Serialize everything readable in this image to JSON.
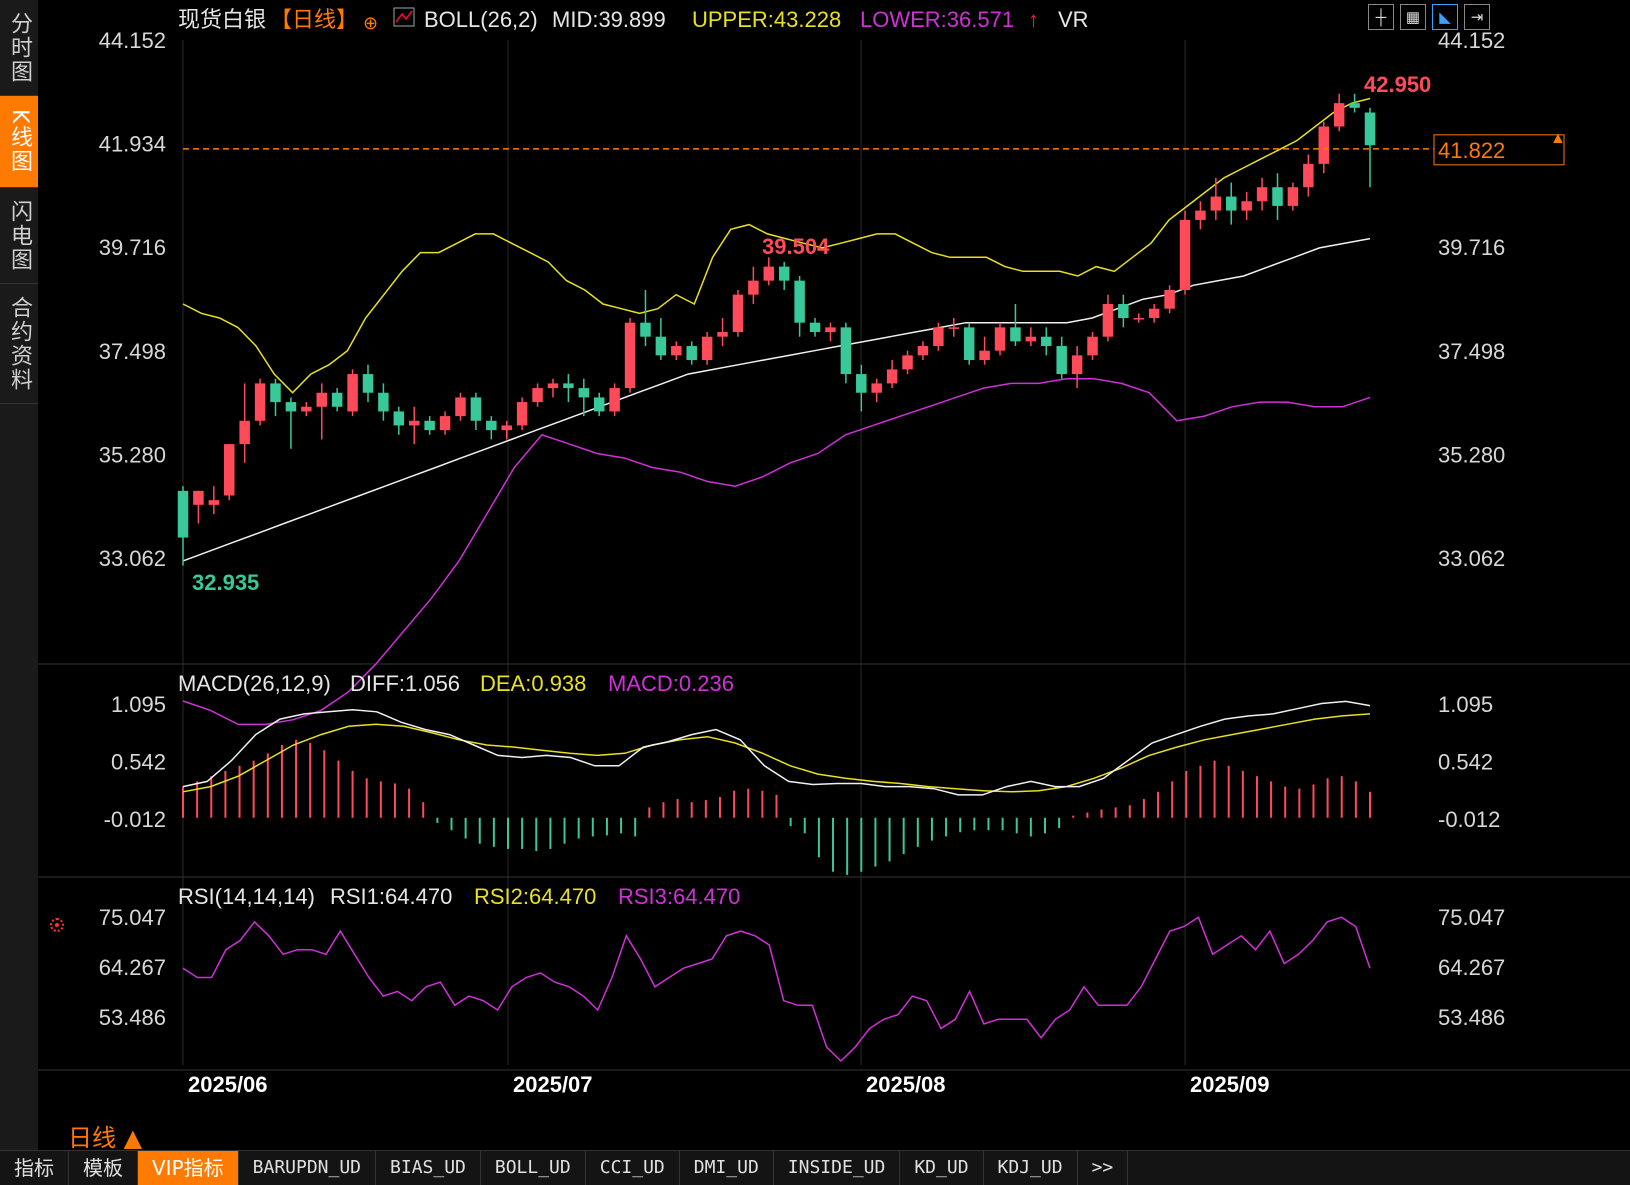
{
  "sidebar": {
    "items": [
      {
        "label": "分时图",
        "active": false
      },
      {
        "label": "K线图",
        "active": true
      },
      {
        "label": "闪电图",
        "active": false
      },
      {
        "label": "合约资料",
        "active": false
      }
    ]
  },
  "header": {
    "instrument": "现货白银",
    "period_tag": "【日线】",
    "boll": {
      "name": "BOLL(26,2)",
      "mid": "MID:39.899",
      "upper": "UPPER:43.228",
      "lower": "LOWER:36.571"
    },
    "vr": "VR"
  },
  "macd_header": {
    "name": "MACD(26,12,9)",
    "diff": "DIFF:1.056",
    "dea": "DEA:0.938",
    "macd": "MACD:0.236"
  },
  "rsi_header": {
    "name": "RSI(14,14,14)",
    "rsi1": "RSI1:64.470",
    "rsi2": "RSI2:64.470",
    "rsi3": "RSI3:64.470"
  },
  "period_label": "日线",
  "toolbar": {
    "icons": [
      "crosshair-icon",
      "chart-type-icon",
      "draw-tool-icon",
      "exit-fullscreen-icon"
    ]
  },
  "bottom_tabs": [
    "指标",
    "模板",
    "VIP指标",
    "BARUPDN_UD",
    "BIAS_UD",
    "BOLL_UD",
    "CCI_UD",
    "DMI_UD",
    "INSIDE_UD",
    "KD_UD",
    "KDJ_UD",
    ">>"
  ],
  "colors": {
    "up": "#ff4a5a",
    "down": "#38c89a",
    "upper": "#e8e020",
    "mid": "#f0f0f0",
    "lower": "#d030d8",
    "accent": "#ff7a00"
  },
  "chart_data": [
    {
      "type": "candlestick",
      "x_labels": [
        "2025/06",
        "2025/07",
        "2025/08",
        "2025/09"
      ],
      "y_ticks": [
        "44.152",
        "41.934",
        "39.716",
        "37.498",
        "35.280",
        "33.062"
      ],
      "ylim": [
        33.062,
        44.152
      ],
      "last_price": 41.822,
      "annotations": {
        "high": "42.950",
        "mid_high": "39.504",
        "low": "32.935"
      },
      "candles": [
        [
          34.5,
          33.5,
          34.6,
          32.9
        ],
        [
          34.2,
          34.5,
          34.5,
          33.8
        ],
        [
          34.2,
          34.3,
          34.6,
          34.0
        ],
        [
          34.4,
          35.5,
          35.5,
          34.3
        ],
        [
          35.5,
          36.0,
          36.8,
          35.1
        ],
        [
          36.0,
          36.8,
          36.9,
          35.9
        ],
        [
          36.8,
          36.4,
          36.9,
          36.1
        ],
        [
          36.4,
          36.2,
          36.5,
          35.4
        ],
        [
          36.2,
          36.3,
          36.4,
          36.1
        ],
        [
          36.3,
          36.6,
          36.8,
          35.6
        ],
        [
          36.6,
          36.3,
          36.7,
          36.2
        ],
        [
          36.2,
          37.0,
          37.1,
          36.1
        ],
        [
          37.0,
          36.6,
          37.2,
          36.4
        ],
        [
          36.6,
          36.2,
          36.8,
          36.0
        ],
        [
          36.2,
          35.9,
          36.3,
          35.7
        ],
        [
          35.9,
          36.0,
          36.3,
          35.5
        ],
        [
          36.0,
          35.8,
          36.1,
          35.7
        ],
        [
          35.8,
          36.1,
          36.2,
          35.7
        ],
        [
          36.1,
          36.5,
          36.6,
          36.0
        ],
        [
          36.5,
          36.0,
          36.6,
          35.8
        ],
        [
          36.0,
          35.8,
          36.1,
          35.6
        ],
        [
          35.8,
          35.9,
          36.0,
          35.6
        ],
        [
          35.9,
          36.4,
          36.5,
          35.8
        ],
        [
          36.4,
          36.7,
          36.8,
          36.3
        ],
        [
          36.7,
          36.8,
          36.9,
          36.5
        ],
        [
          36.8,
          36.7,
          37.0,
          36.4
        ],
        [
          36.7,
          36.5,
          36.9,
          36.1
        ],
        [
          36.5,
          36.2,
          36.6,
          36.1
        ],
        [
          36.2,
          36.7,
          36.8,
          36.1
        ],
        [
          36.7,
          38.1,
          38.2,
          36.6
        ],
        [
          38.1,
          37.8,
          38.8,
          37.6
        ],
        [
          37.8,
          37.4,
          38.2,
          37.3
        ],
        [
          37.4,
          37.6,
          37.7,
          37.3
        ],
        [
          37.6,
          37.3,
          37.7,
          37.2
        ],
        [
          37.3,
          37.8,
          37.9,
          37.2
        ],
        [
          37.8,
          37.9,
          38.2,
          37.6
        ],
        [
          37.9,
          38.7,
          38.8,
          37.8
        ],
        [
          38.7,
          39.0,
          39.3,
          38.5
        ],
        [
          39.0,
          39.3,
          39.5,
          38.9
        ],
        [
          39.3,
          39.0,
          39.4,
          38.8
        ],
        [
          39.0,
          38.1,
          39.1,
          37.8
        ],
        [
          38.1,
          37.9,
          38.2,
          37.8
        ],
        [
          37.9,
          38.0,
          38.1,
          37.7
        ],
        [
          38.0,
          37.0,
          38.1,
          36.8
        ],
        [
          37.0,
          36.6,
          37.2,
          36.2
        ],
        [
          36.6,
          36.8,
          36.9,
          36.4
        ],
        [
          36.8,
          37.1,
          37.3,
          36.7
        ],
        [
          37.1,
          37.4,
          37.5,
          37.0
        ],
        [
          37.4,
          37.6,
          37.7,
          37.3
        ],
        [
          37.6,
          38.0,
          38.1,
          37.5
        ],
        [
          38.0,
          38.0,
          38.2,
          37.8
        ],
        [
          38.0,
          37.3,
          38.1,
          37.2
        ],
        [
          37.3,
          37.5,
          37.8,
          37.2
        ],
        [
          37.5,
          38.0,
          38.1,
          37.4
        ],
        [
          38.0,
          37.7,
          38.5,
          37.6
        ],
        [
          37.7,
          37.8,
          38.0,
          37.6
        ],
        [
          37.8,
          37.6,
          38.0,
          37.4
        ],
        [
          37.6,
          37.0,
          37.8,
          36.9
        ],
        [
          37.0,
          37.4,
          37.6,
          36.7
        ],
        [
          37.4,
          37.8,
          37.9,
          37.3
        ],
        [
          37.8,
          38.5,
          38.7,
          37.7
        ],
        [
          38.5,
          38.2,
          38.7,
          38.0
        ],
        [
          38.2,
          38.2,
          38.3,
          38.1
        ],
        [
          38.2,
          38.4,
          38.5,
          38.1
        ],
        [
          38.4,
          38.8,
          38.9,
          38.3
        ],
        [
          38.8,
          40.3,
          40.5,
          38.7
        ],
        [
          40.3,
          40.5,
          40.7,
          40.1
        ],
        [
          40.5,
          40.8,
          41.2,
          40.3
        ],
        [
          40.8,
          40.5,
          41.1,
          40.2
        ],
        [
          40.5,
          40.7,
          40.9,
          40.3
        ],
        [
          40.7,
          41.0,
          41.2,
          40.5
        ],
        [
          41.0,
          40.6,
          41.3,
          40.3
        ],
        [
          40.6,
          41.0,
          41.1,
          40.5
        ],
        [
          41.0,
          41.5,
          41.7,
          40.8
        ],
        [
          41.5,
          42.3,
          42.4,
          41.3
        ],
        [
          42.3,
          42.8,
          43.0,
          42.2
        ],
        [
          42.8,
          42.7,
          43.0,
          42.6
        ],
        [
          42.6,
          41.9,
          42.7,
          41.0
        ]
      ],
      "upper_band": [
        38.5,
        38.3,
        38.2,
        38.0,
        37.6,
        37.0,
        36.6,
        37.0,
        37.2,
        37.5,
        38.2,
        38.7,
        39.2,
        39.6,
        39.6,
        39.8,
        40.0,
        40.0,
        39.8,
        39.6,
        39.4,
        39.0,
        38.8,
        38.5,
        38.4,
        38.3,
        38.4,
        38.7,
        38.5,
        39.5,
        40.1,
        40.2,
        40.0,
        39.9,
        39.8,
        39.7,
        39.8,
        39.9,
        40.0,
        40.0,
        39.8,
        39.6,
        39.5,
        39.5,
        39.5,
        39.3,
        39.2,
        39.2,
        39.2,
        39.1,
        39.3,
        39.2,
        39.5,
        39.8,
        40.3,
        40.6,
        40.9,
        41.2,
        41.4,
        41.6,
        41.8,
        42.0,
        42.3,
        42.6,
        42.8,
        42.9
      ],
      "mid_band": [
        33.0,
        33.2,
        33.4,
        33.6,
        33.8,
        34.0,
        34.2,
        34.4,
        34.6,
        34.8,
        35.0,
        35.2,
        35.4,
        35.6,
        35.8,
        36.0,
        36.2,
        36.4,
        36.6,
        36.8,
        37.0,
        37.1,
        37.2,
        37.3,
        37.4,
        37.5,
        37.6,
        37.7,
        37.8,
        37.9,
        38.0,
        38.1,
        38.1,
        38.1,
        38.1,
        38.1,
        38.2,
        38.4,
        38.6,
        38.7,
        38.9,
        39.0,
        39.1,
        39.3,
        39.5,
        39.7,
        39.8,
        39.9
      ],
      "lower_band": [
        30.0,
        29.8,
        29.5,
        29.5,
        29.6,
        29.8,
        30.2,
        30.8,
        31.5,
        32.2,
        33.0,
        34.0,
        35.0,
        35.7,
        35.5,
        35.3,
        35.2,
        35.0,
        34.9,
        34.7,
        34.6,
        34.8,
        35.1,
        35.3,
        35.7,
        35.9,
        36.1,
        36.3,
        36.5,
        36.7,
        36.8,
        36.8,
        36.9,
        36.9,
        36.8,
        36.6,
        36.0,
        36.1,
        36.3,
        36.4,
        36.4,
        36.3,
        36.3,
        36.5
      ]
    },
    {
      "type": "bar",
      "y_ticks": [
        "1.095",
        "0.542",
        "-0.012"
      ],
      "ylim": [
        -0.6,
        1.3
      ],
      "hist": [
        0.3,
        0.35,
        0.4,
        0.45,
        0.5,
        0.55,
        0.62,
        0.7,
        0.75,
        0.72,
        0.65,
        0.55,
        0.45,
        0.38,
        0.35,
        0.33,
        0.28,
        0.15,
        -0.05,
        -0.12,
        -0.2,
        -0.25,
        -0.28,
        -0.3,
        -0.3,
        -0.32,
        -0.3,
        -0.25,
        -0.2,
        -0.18,
        -0.17,
        -0.15,
        -0.18,
        0.1,
        0.15,
        0.18,
        0.15,
        0.17,
        0.2,
        0.26,
        0.28,
        0.26,
        0.22,
        -0.08,
        -0.15,
        -0.38,
        -0.52,
        -0.55,
        -0.52,
        -0.47,
        -0.42,
        -0.35,
        -0.28,
        -0.22,
        -0.18,
        -0.14,
        -0.12,
        -0.12,
        -0.12,
        -0.15,
        -0.18,
        -0.15,
        -0.1,
        0.02,
        0.05,
        0.08,
        0.1,
        0.12,
        0.18,
        0.25,
        0.35,
        0.45,
        0.5,
        0.55,
        0.5,
        0.45,
        0.4,
        0.35,
        0.3,
        0.28,
        0.32,
        0.38,
        0.4,
        0.35,
        0.25
      ],
      "diff": [
        0.3,
        0.35,
        0.55,
        0.8,
        0.95,
        1.0,
        1.02,
        1.04,
        1.02,
        0.92,
        0.85,
        0.8,
        0.7,
        0.6,
        0.58,
        0.6,
        0.58,
        0.5,
        0.5,
        0.68,
        0.73,
        0.8,
        0.85,
        0.75,
        0.5,
        0.35,
        0.32,
        0.33,
        0.33,
        0.3,
        0.3,
        0.28,
        0.22,
        0.22,
        0.3,
        0.35,
        0.3,
        0.3,
        0.38,
        0.55,
        0.72,
        0.8,
        0.88,
        0.95,
        0.98,
        1.0,
        1.05,
        1.1,
        1.12,
        1.08
      ],
      "dea": [
        0.25,
        0.3,
        0.4,
        0.55,
        0.7,
        0.8,
        0.88,
        0.9,
        0.88,
        0.82,
        0.75,
        0.7,
        0.68,
        0.65,
        0.62,
        0.6,
        0.62,
        0.7,
        0.75,
        0.78,
        0.72,
        0.62,
        0.5,
        0.42,
        0.38,
        0.35,
        0.33,
        0.3,
        0.28,
        0.26,
        0.25,
        0.26,
        0.3,
        0.38,
        0.48,
        0.6,
        0.68,
        0.75,
        0.8,
        0.85,
        0.9,
        0.95,
        0.98,
        1.0
      ]
    },
    {
      "type": "line",
      "y_ticks": [
        "75.047",
        "64.267",
        "53.486"
      ],
      "ylim": [
        42.0,
        80.0
      ],
      "rsi": [
        64,
        62,
        62,
        68,
        70,
        74,
        71,
        67,
        68,
        68,
        67,
        72,
        67,
        62,
        58,
        59,
        57,
        60,
        61,
        56,
        58,
        57,
        55,
        60,
        62,
        63,
        61,
        60,
        58,
        55,
        62,
        71,
        66,
        60,
        62,
        64,
        65,
        66,
        71,
        72,
        71,
        69,
        57,
        56,
        56,
        47,
        44,
        47,
        51,
        53,
        54,
        58,
        57,
        51,
        53,
        59,
        52,
        53,
        53,
        53,
        49,
        53,
        55,
        60,
        56,
        56,
        56,
        60,
        66,
        72,
        73,
        75,
        67,
        69,
        71,
        68,
        72,
        65,
        67,
        70,
        74,
        75,
        73,
        64
      ]
    }
  ]
}
